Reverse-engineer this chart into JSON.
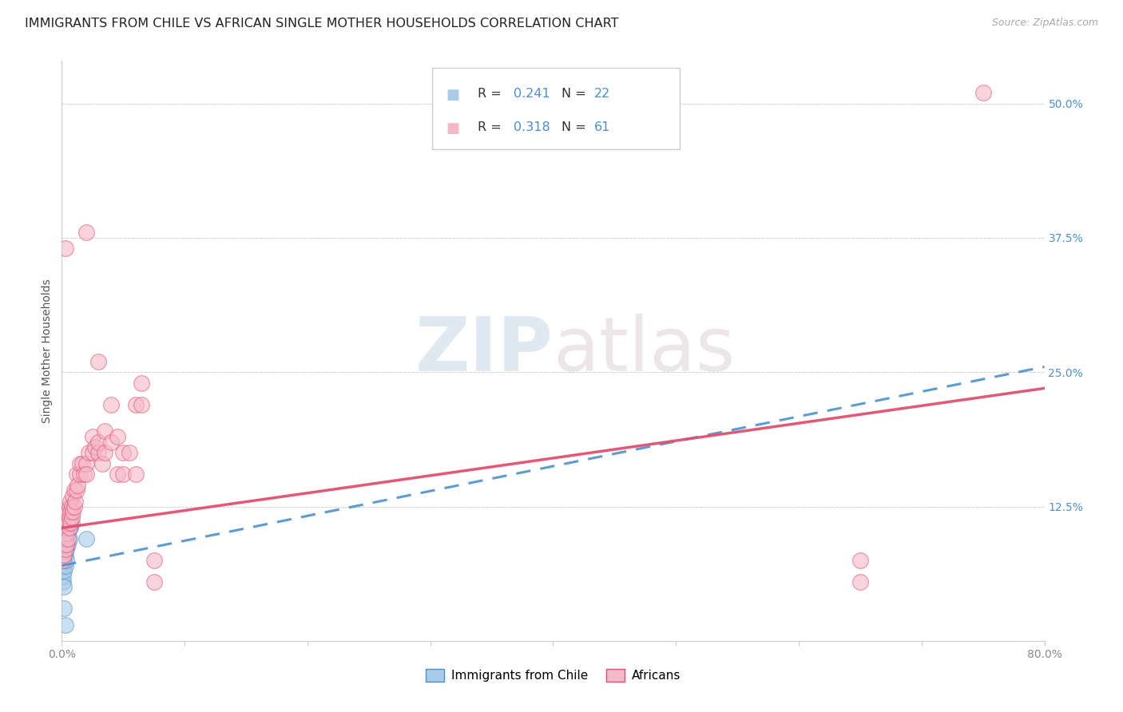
{
  "title": "IMMIGRANTS FROM CHILE VS AFRICAN SINGLE MOTHER HOUSEHOLDS CORRELATION CHART",
  "source": "Source: ZipAtlas.com",
  "ylabel": "Single Mother Households",
  "xlim": [
    0.0,
    0.8
  ],
  "ylim": [
    0.0,
    0.54
  ],
  "legend_label1": "Immigrants from Chile",
  "legend_label2": "Africans",
  "color_blue_fill": "#a8cce8",
  "color_pink_fill": "#f5b8c8",
  "color_blue_edge": "#4a90d0",
  "color_pink_edge": "#e05070",
  "color_blue_line": "#4a90d0",
  "color_pink_line": "#e05070",
  "color_r_text": "#4a90d0",
  "color_n_text": "#4a90d0",
  "background_color": "#ffffff",
  "grid_color": "#cccccc",
  "watermark_color": "#ccd8e8",
  "chile_points": [
    [
      0.001,
      0.055
    ],
    [
      0.001,
      0.07
    ],
    [
      0.001,
      0.08
    ],
    [
      0.001,
      0.06
    ],
    [
      0.002,
      0.065
    ],
    [
      0.002,
      0.075
    ],
    [
      0.002,
      0.085
    ],
    [
      0.002,
      0.05
    ],
    [
      0.003,
      0.07
    ],
    [
      0.003,
      0.08
    ],
    [
      0.003,
      0.09
    ],
    [
      0.003,
      0.095
    ],
    [
      0.004,
      0.085
    ],
    [
      0.004,
      0.075
    ],
    [
      0.005,
      0.09
    ],
    [
      0.005,
      0.1
    ],
    [
      0.006,
      0.095
    ],
    [
      0.007,
      0.105
    ],
    [
      0.008,
      0.11
    ],
    [
      0.02,
      0.095
    ],
    [
      0.003,
      0.015
    ],
    [
      0.002,
      0.03
    ]
  ],
  "african_points": [
    [
      0.001,
      0.075
    ],
    [
      0.002,
      0.08
    ],
    [
      0.002,
      0.09
    ],
    [
      0.003,
      0.085
    ],
    [
      0.003,
      0.095
    ],
    [
      0.003,
      0.105
    ],
    [
      0.004,
      0.09
    ],
    [
      0.004,
      0.1
    ],
    [
      0.005,
      0.095
    ],
    [
      0.005,
      0.11
    ],
    [
      0.005,
      0.12
    ],
    [
      0.006,
      0.105
    ],
    [
      0.006,
      0.115
    ],
    [
      0.006,
      0.125
    ],
    [
      0.007,
      0.11
    ],
    [
      0.007,
      0.12
    ],
    [
      0.007,
      0.13
    ],
    [
      0.008,
      0.115
    ],
    [
      0.008,
      0.125
    ],
    [
      0.009,
      0.12
    ],
    [
      0.009,
      0.135
    ],
    [
      0.01,
      0.125
    ],
    [
      0.01,
      0.14
    ],
    [
      0.011,
      0.13
    ],
    [
      0.012,
      0.14
    ],
    [
      0.012,
      0.155
    ],
    [
      0.013,
      0.145
    ],
    [
      0.015,
      0.155
    ],
    [
      0.015,
      0.165
    ],
    [
      0.017,
      0.165
    ],
    [
      0.018,
      0.155
    ],
    [
      0.02,
      0.165
    ],
    [
      0.02,
      0.155
    ],
    [
      0.022,
      0.175
    ],
    [
      0.025,
      0.175
    ],
    [
      0.025,
      0.19
    ],
    [
      0.027,
      0.18
    ],
    [
      0.03,
      0.175
    ],
    [
      0.03,
      0.185
    ],
    [
      0.033,
      0.165
    ],
    [
      0.035,
      0.195
    ],
    [
      0.035,
      0.175
    ],
    [
      0.04,
      0.185
    ],
    [
      0.045,
      0.19
    ],
    [
      0.045,
      0.155
    ],
    [
      0.05,
      0.175
    ],
    [
      0.05,
      0.155
    ],
    [
      0.055,
      0.175
    ],
    [
      0.06,
      0.155
    ],
    [
      0.06,
      0.22
    ],
    [
      0.065,
      0.22
    ],
    [
      0.065,
      0.24
    ],
    [
      0.003,
      0.365
    ],
    [
      0.02,
      0.38
    ],
    [
      0.03,
      0.26
    ],
    [
      0.04,
      0.22
    ],
    [
      0.075,
      0.075
    ],
    [
      0.075,
      0.055
    ],
    [
      0.65,
      0.075
    ],
    [
      0.65,
      0.055
    ],
    [
      0.75,
      0.51
    ]
  ]
}
